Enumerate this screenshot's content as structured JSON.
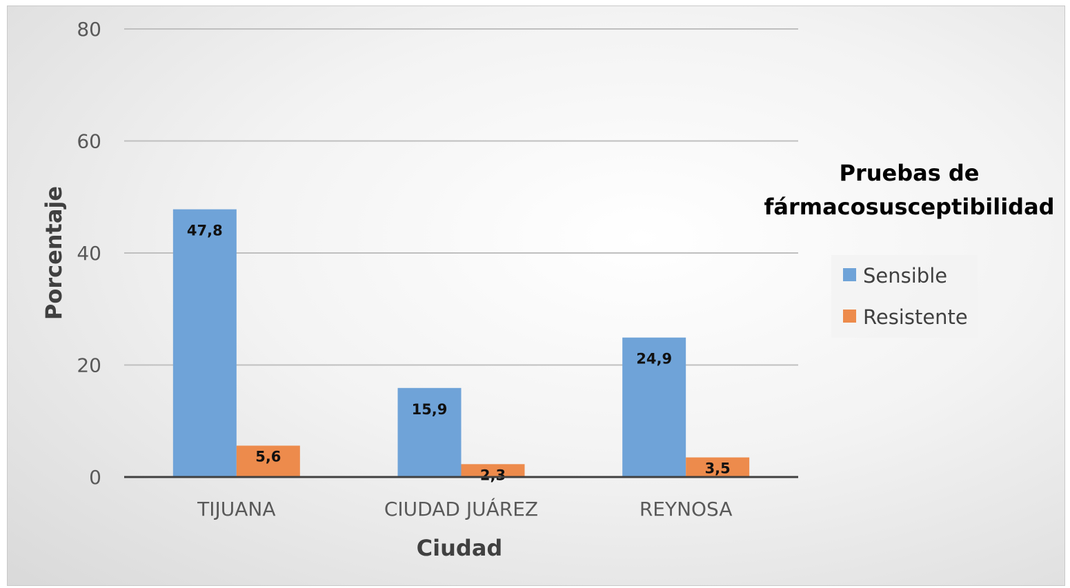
{
  "chart_data": {
    "type": "bar",
    "categories": [
      "TIJUANA",
      "CIUDAD JUÁREZ",
      "REYNOSA"
    ],
    "series": [
      {
        "name": "Sensible",
        "values": [
          47.8,
          15.9,
          24.9
        ],
        "color": "#6fa3d8",
        "labels": [
          "47,8",
          "15,9",
          "24,9"
        ]
      },
      {
        "name": "Resistente",
        "values": [
          5.6,
          2.3,
          3.5
        ],
        "color": "#ed8b4c",
        "labels": [
          "5,6",
          "2,3",
          "3,5"
        ]
      }
    ],
    "xlabel": "Ciudad",
    "ylabel": "Porcentaje",
    "ylim": [
      0,
      80
    ],
    "yticks": [
      "0",
      "20",
      "40",
      "60",
      "80"
    ],
    "grid": true,
    "legend": {
      "title_lines": [
        "Pruebas de",
        "fármacosusceptibilidad"
      ],
      "placement": "right"
    }
  }
}
